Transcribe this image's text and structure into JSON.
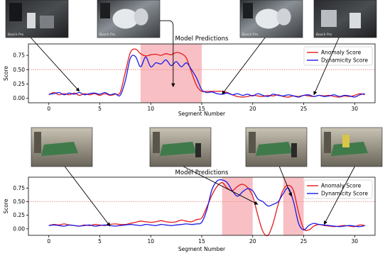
{
  "figure": {
    "thumbnail_sets": [
      {
        "chart_index": 0,
        "thumbnails": [
          {
            "name": "top-left-frame",
            "scene": "dark-interior",
            "pointer_segment": 3,
            "pointer_score": 0.12,
            "watermark": "Bosch Pro"
          },
          {
            "name": "top-mid-left-frame",
            "scene": "dark-bright-figures",
            "pointer_segment": 12.2,
            "pointer_score": 0.2,
            "watermark": "Bosch Pro"
          },
          {
            "name": "top-mid-right-frame",
            "scene": "crowded-bright",
            "pointer_segment": 17,
            "pointer_score": 0.07,
            "watermark": "Bosch Pro"
          },
          {
            "name": "top-right-frame",
            "scene": "dark-figures",
            "pointer_segment": 26,
            "pointer_score": 0.06,
            "watermark": "Bosch Pro"
          }
        ]
      },
      {
        "chart_index": 1,
        "thumbnails": [
          {
            "name": "bottom-left-frame",
            "scene": "pool-room-empty",
            "pointer_segment": 6,
            "pointer_score": 0.05
          },
          {
            "name": "bottom-mid-left-frame",
            "scene": "pool-room-people",
            "pointer_segment": 20.5,
            "pointer_score": 0.45
          },
          {
            "name": "bottom-mid-right-frame",
            "scene": "pool-room-dark",
            "pointer_segment": 23.8,
            "pointer_score": 0.6
          },
          {
            "name": "bottom-right-frame",
            "scene": "pool-room-corner",
            "pointer_segment": 27,
            "pointer_score": 0.08
          }
        ]
      }
    ]
  },
  "chart_data": [
    {
      "type": "line",
      "title": "Model Predictions",
      "xlabel": "Segment Number",
      "ylabel": "Score",
      "xlim": [
        -2,
        32
      ],
      "ylim": [
        -0.08,
        0.95
      ],
      "xticks": [
        0,
        5,
        10,
        15,
        20,
        25,
        30
      ],
      "yticks": [
        0.0,
        0.25,
        0.5,
        0.75
      ],
      "ytick_labels": [
        "0.00",
        "0.25",
        "0.50",
        "0.75"
      ],
      "threshold": 0.5,
      "threshold_color": "#f08a8a",
      "highlight_ranges": [
        [
          9,
          15
        ]
      ],
      "highlight_color": "#f8c0c4",
      "legend": "top-right",
      "x": [
        0,
        0.5,
        1,
        1.5,
        2,
        2.5,
        3,
        3.5,
        4,
        4.5,
        5,
        5.5,
        6,
        6.5,
        7,
        7.5,
        8,
        8.5,
        9,
        9.5,
        10,
        10.5,
        11,
        11.5,
        12,
        12.5,
        13,
        13.5,
        14,
        14.5,
        15,
        15.5,
        16,
        16.5,
        17,
        17.5,
        18,
        18.5,
        19,
        19.5,
        20,
        20.5,
        21,
        21.5,
        22,
        22.5,
        23,
        23.5,
        24,
        24.5,
        25,
        25.5,
        26,
        26.5,
        27,
        27.5,
        28,
        28.5,
        29,
        29.5,
        30,
        30.5,
        31
      ],
      "series": [
        {
          "name": "Anomaly Score",
          "color": "#e8191a",
          "values": [
            0.06,
            0.1,
            0.06,
            0.08,
            0.06,
            0.09,
            0.05,
            0.08,
            0.06,
            0.08,
            0.05,
            0.08,
            0.05,
            0.07,
            0.1,
            0.45,
            0.8,
            0.86,
            0.78,
            0.74,
            0.76,
            0.77,
            0.75,
            0.78,
            0.76,
            0.8,
            0.78,
            0.7,
            0.45,
            0.22,
            0.12,
            0.12,
            0.12,
            0.12,
            0.12,
            0.1,
            0.06,
            0.03,
            0.02,
            0.03,
            0.05,
            0.04,
            0.03,
            0.05,
            0.04,
            0.06,
            0.03,
            0.02,
            0.04,
            0.03,
            0.05,
            0.04,
            0.03,
            0.05,
            0.04,
            0.05,
            0.03,
            0.02,
            0.04,
            0.03,
            0.05,
            0.08,
            0.06
          ]
        },
        {
          "name": "Dynamicity Score",
          "color": "#1a1ae8",
          "values": [
            0.07,
            0.08,
            0.1,
            0.06,
            0.09,
            0.07,
            0.1,
            0.06,
            0.08,
            0.09,
            0.07,
            0.1,
            0.06,
            0.08,
            0.05,
            0.3,
            0.7,
            0.73,
            0.55,
            0.72,
            0.55,
            0.62,
            0.6,
            0.67,
            0.57,
            0.64,
            0.55,
            0.62,
            0.5,
            0.35,
            0.15,
            0.1,
            0.11,
            0.08,
            0.07,
            0.09,
            0.06,
            0.08,
            0.05,
            0.07,
            0.04,
            0.08,
            0.05,
            0.03,
            0.07,
            0.05,
            0.04,
            0.06,
            0.04,
            0.02,
            0.05,
            0.06,
            0.03,
            0.05,
            0.03,
            0.04,
            0.06,
            0.03,
            0.05,
            0.04,
            0.02,
            0.06,
            0.08
          ]
        }
      ]
    },
    {
      "type": "line",
      "title": "Model Predictions",
      "xlabel": "Segment Number",
      "ylabel": "Score",
      "xlim": [
        -2,
        32
      ],
      "ylim": [
        -0.12,
        0.95
      ],
      "xticks": [
        0,
        5,
        10,
        15,
        20,
        25,
        30
      ],
      "yticks": [
        0.0,
        0.25,
        0.5,
        0.75
      ],
      "ytick_labels": [
        "0.00",
        "0.25",
        "0.50",
        "0.75"
      ],
      "threshold": 0.5,
      "threshold_color": "#f08a8a",
      "highlight_ranges": [
        [
          17,
          20
        ],
        [
          23,
          25
        ]
      ],
      "highlight_color": "#f8c0c4",
      "legend": "top-right",
      "x": [
        0,
        0.5,
        1,
        1.5,
        2,
        2.5,
        3,
        3.5,
        4,
        4.5,
        5,
        5.5,
        6,
        6.5,
        7,
        7.5,
        8,
        8.5,
        9,
        9.5,
        10,
        10.5,
        11,
        11.5,
        12,
        12.5,
        13,
        13.5,
        14,
        14.5,
        15,
        15.5,
        16,
        16.5,
        17,
        17.5,
        18,
        18.5,
        19,
        19.5,
        20,
        20.5,
        21,
        21.5,
        22,
        22.5,
        23,
        23.5,
        24,
        24.5,
        25,
        25.5,
        26,
        26.5,
        27,
        27.5,
        28,
        28.5,
        29,
        29.5,
        30,
        30.5,
        31
      ],
      "series": [
        {
          "name": "Anomaly Score",
          "color": "#e8191a",
          "values": [
            0.06,
            0.08,
            0.07,
            0.09,
            0.07,
            0.06,
            0.05,
            0.07,
            0.06,
            0.08,
            0.07,
            0.06,
            0.08,
            0.09,
            0.08,
            0.08,
            0.1,
            0.12,
            0.14,
            0.13,
            0.12,
            0.13,
            0.15,
            0.13,
            0.12,
            0.13,
            0.16,
            0.14,
            0.13,
            0.17,
            0.2,
            0.4,
            0.62,
            0.78,
            0.85,
            0.75,
            0.7,
            0.78,
            0.82,
            0.76,
            0.6,
            0.25,
            -0.05,
            -0.12,
            0.1,
            0.45,
            0.72,
            0.8,
            0.7,
            0.3,
            0.0,
            -0.02,
            0.05,
            0.08,
            0.06,
            0.05,
            0.04,
            0.05,
            0.06,
            0.05,
            0.04,
            0.07,
            0.06
          ]
        },
        {
          "name": "Dynamicity Score",
          "color": "#1a1ae8",
          "values": [
            0.06,
            0.07,
            0.06,
            0.05,
            0.07,
            0.06,
            0.05,
            0.06,
            0.07,
            0.05,
            0.06,
            0.07,
            0.06,
            0.05,
            0.06,
            0.07,
            0.08,
            0.07,
            0.06,
            0.08,
            0.07,
            0.06,
            0.08,
            0.07,
            0.06,
            0.07,
            0.08,
            0.09,
            0.08,
            0.09,
            0.12,
            0.35,
            0.72,
            0.88,
            0.9,
            0.85,
            0.7,
            0.6,
            0.68,
            0.74,
            0.7,
            0.55,
            0.5,
            0.42,
            0.45,
            0.5,
            0.65,
            0.75,
            0.5,
            0.1,
            -0.02,
            0.06,
            0.1,
            0.08,
            0.07,
            0.06,
            0.05,
            0.04,
            0.05,
            0.06,
            0.05,
            0.04,
            0.06
          ]
        }
      ]
    }
  ]
}
